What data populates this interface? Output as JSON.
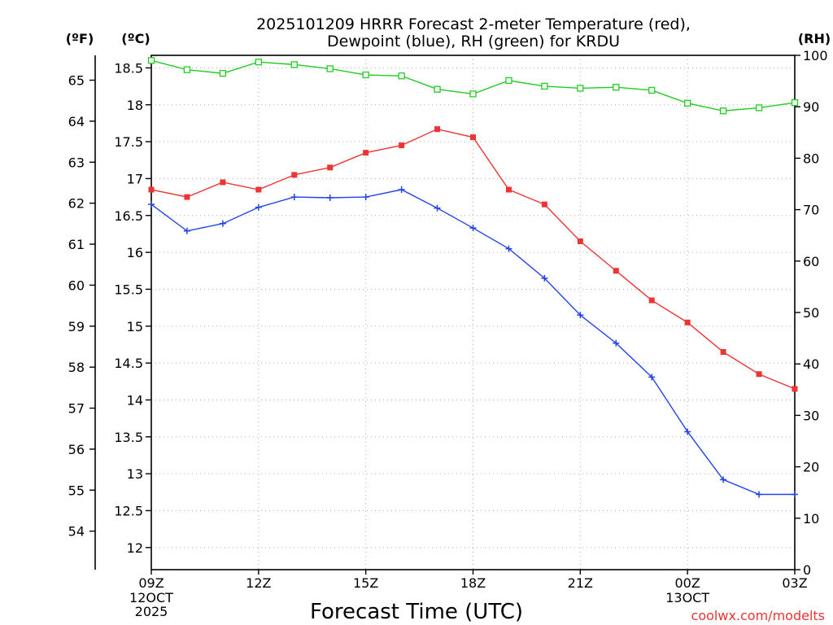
{
  "chart_data": {
    "type": "line",
    "title_line1": "2025101209 HRRR Forecast 2-meter Temperature (red),",
    "title_line2": "Dewpoint (blue), RH (green) for KRDU",
    "xlabel": "Forecast Time (UTC)",
    "credit": "coolwx.com/modelts",
    "left_outer_unit": "(ºF)",
    "left_inner_unit": "(ºC)",
    "right_unit": "(RH)",
    "hours": [
      0,
      1,
      2,
      3,
      4,
      5,
      6,
      7,
      8,
      9,
      10,
      11,
      12,
      13,
      14,
      15,
      16,
      17,
      18
    ],
    "x_ticks": [
      {
        "hour": 0,
        "label": "09Z",
        "sub1": "12OCT",
        "sub2": "2025"
      },
      {
        "hour": 3,
        "label": "12Z",
        "sub1": "",
        "sub2": ""
      },
      {
        "hour": 6,
        "label": "15Z",
        "sub1": "",
        "sub2": ""
      },
      {
        "hour": 9,
        "label": "18Z",
        "sub1": "",
        "sub2": ""
      },
      {
        "hour": 12,
        "label": "21Z",
        "sub1": "",
        "sub2": ""
      },
      {
        "hour": 15,
        "label": "00Z",
        "sub1": "13OCT",
        "sub2": ""
      },
      {
        "hour": 18,
        "label": "03Z",
        "sub1": "",
        "sub2": ""
      }
    ],
    "celsius_axis": {
      "min": 11.7,
      "max": 18.67,
      "ticks": [
        "12",
        "12.5",
        "13",
        "13.5",
        "14",
        "14.5",
        "15",
        "15.5",
        "16",
        "16.5",
        "17",
        "17.5",
        "18",
        "18.5"
      ]
    },
    "fahrenheit_ticks": [
      "54",
      "55",
      "56",
      "57",
      "58",
      "59",
      "60",
      "61",
      "62",
      "63",
      "64",
      "65"
    ],
    "rh_axis": {
      "min": 0,
      "max": 100,
      "ticks": [
        "0",
        "10",
        "20",
        "30",
        "40",
        "50",
        "60",
        "70",
        "80",
        "90",
        "100"
      ]
    },
    "series": [
      {
        "name": "Temperature",
        "axis": "celsius",
        "color": "#ee3333",
        "marker": "filled-square",
        "values": [
          16.85,
          16.75,
          16.95,
          16.85,
          17.05,
          17.15,
          17.35,
          17.45,
          17.67,
          17.56,
          16.85,
          16.65,
          16.15,
          15.75,
          15.35,
          15.05,
          14.65,
          14.35,
          14.15
        ]
      },
      {
        "name": "Dewpoint",
        "axis": "celsius",
        "color": "#2244ee",
        "marker": "plus",
        "values": [
          16.65,
          16.29,
          16.39,
          16.61,
          16.75,
          16.74,
          16.75,
          16.85,
          16.6,
          16.33,
          16.05,
          15.65,
          15.15,
          14.77,
          14.31,
          13.57,
          12.92,
          12.72,
          12.72
        ]
      },
      {
        "name": "RH",
        "axis": "rh",
        "color": "#22cc22",
        "marker": "open-square",
        "values": [
          99,
          97.2,
          96.5,
          98.7,
          98.2,
          97.4,
          96.2,
          96,
          93.4,
          92.5,
          95.1,
          94,
          93.6,
          93.8,
          93.2,
          90.7,
          89.2,
          89.8,
          90.8
        ]
      }
    ]
  }
}
